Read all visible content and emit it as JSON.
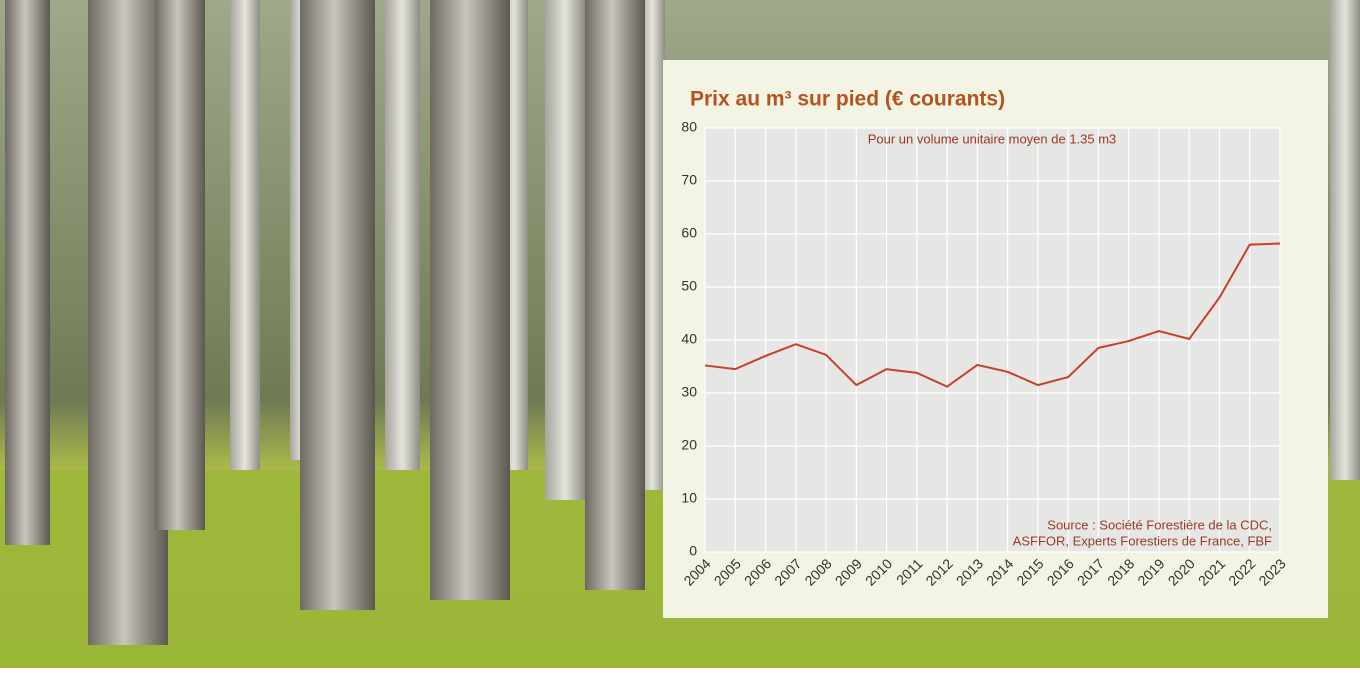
{
  "chart_data": {
    "type": "line",
    "title": "Prix au m³ sur pied (€ courants)",
    "subtitle": "Pour un volume unitaire moyen de 1.35 m3",
    "source": [
      "Source : Société Forestière de la CDC,",
      "ASFFOR, Experts Forestiers de France, FBF"
    ],
    "categories": [
      "2004",
      "2005",
      "2006",
      "2007",
      "2008",
      "2009",
      "2010",
      "2011",
      "2012",
      "2013",
      "2014",
      "2015",
      "2016",
      "2017",
      "2018",
      "2019",
      "2020",
      "2021",
      "2022",
      "2023"
    ],
    "series": [
      {
        "color": "#c8402a",
        "values": [
          35.2,
          34.5,
          37,
          39.2,
          37.2,
          31.5,
          34.5,
          33.8,
          31.2,
          35.3,
          34,
          31.5,
          33,
          38.5,
          39.8,
          41.7,
          40.2,
          48,
          58,
          58.2
        ]
      }
    ],
    "ylim": [
      0,
      80
    ],
    "yticks": [
      0,
      10,
      20,
      30,
      40,
      50,
      60,
      70,
      80
    ],
    "grid": true
  }
}
